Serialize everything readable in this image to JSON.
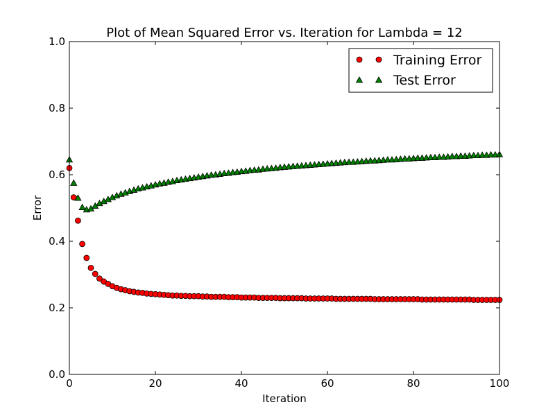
{
  "chart_data": {
    "type": "scatter",
    "title": "Plot of Mean Squared Error vs. Iteration for Lambda = 12",
    "xlabel": "Iteration",
    "ylabel": "Error",
    "xlim": [
      0,
      100
    ],
    "ylim": [
      0,
      1.0
    ],
    "xticks": [
      "0",
      "20",
      "40",
      "60",
      "80",
      "100"
    ],
    "yticks": [
      "0.0",
      "0.2",
      "0.4",
      "0.6",
      "0.8",
      "1.0"
    ],
    "grid": false,
    "legend_position": "top-right",
    "series": [
      {
        "name": "Training Error",
        "marker": "circle",
        "color": "#ff0000",
        "x": [
          0,
          1,
          2,
          3,
          4,
          5,
          6,
          7,
          8,
          9,
          10,
          11,
          12,
          13,
          14,
          15,
          16,
          17,
          18,
          19,
          20,
          21,
          22,
          23,
          24,
          25,
          26,
          27,
          28,
          29,
          30,
          31,
          32,
          33,
          34,
          35,
          36,
          37,
          38,
          39,
          40,
          41,
          42,
          43,
          44,
          45,
          46,
          47,
          48,
          49,
          50,
          51,
          52,
          53,
          54,
          55,
          56,
          57,
          58,
          59,
          60,
          61,
          62,
          63,
          64,
          65,
          66,
          67,
          68,
          69,
          70,
          71,
          72,
          73,
          74,
          75,
          76,
          77,
          78,
          79,
          80,
          81,
          82,
          83,
          84,
          85,
          86,
          87,
          88,
          89,
          90,
          91,
          92,
          93,
          94,
          95,
          96,
          97,
          98,
          99,
          100
        ],
        "values": [
          0.62,
          0.532,
          0.462,
          0.392,
          0.35,
          0.32,
          0.302,
          0.288,
          0.279,
          0.272,
          0.265,
          0.26,
          0.256,
          0.253,
          0.25,
          0.248,
          0.246,
          0.245,
          0.243,
          0.242,
          0.241,
          0.24,
          0.239,
          0.238,
          0.237,
          0.237,
          0.236,
          0.236,
          0.235,
          0.235,
          0.235,
          0.234,
          0.234,
          0.233,
          0.233,
          0.233,
          0.233,
          0.232,
          0.232,
          0.232,
          0.231,
          0.231,
          0.231,
          0.231,
          0.23,
          0.23,
          0.23,
          0.23,
          0.23,
          0.229,
          0.229,
          0.229,
          0.229,
          0.229,
          0.229,
          0.228,
          0.228,
          0.228,
          0.228,
          0.228,
          0.228,
          0.228,
          0.227,
          0.227,
          0.227,
          0.227,
          0.227,
          0.227,
          0.227,
          0.227,
          0.227,
          0.226,
          0.226,
          0.226,
          0.226,
          0.226,
          0.226,
          0.226,
          0.226,
          0.226,
          0.226,
          0.226,
          0.225,
          0.225,
          0.225,
          0.225,
          0.225,
          0.225,
          0.225,
          0.225,
          0.225,
          0.225,
          0.225,
          0.225,
          0.224,
          0.224,
          0.224,
          0.224,
          0.224,
          0.224,
          0.224
        ]
      },
      {
        "name": "Test Error",
        "marker": "triangle",
        "color": "#008000",
        "x": [
          0,
          1,
          2,
          3,
          4,
          5,
          6,
          7,
          8,
          9,
          10,
          11,
          12,
          13,
          14,
          15,
          16,
          17,
          18,
          19,
          20,
          21,
          22,
          23,
          24,
          25,
          26,
          27,
          28,
          29,
          30,
          31,
          32,
          33,
          34,
          35,
          36,
          37,
          38,
          39,
          40,
          41,
          42,
          43,
          44,
          45,
          46,
          47,
          48,
          49,
          50,
          51,
          52,
          53,
          54,
          55,
          56,
          57,
          58,
          59,
          60,
          61,
          62,
          63,
          64,
          65,
          66,
          67,
          68,
          69,
          70,
          71,
          72,
          73,
          74,
          75,
          76,
          77,
          78,
          79,
          80,
          81,
          82,
          83,
          84,
          85,
          86,
          87,
          88,
          89,
          90,
          91,
          92,
          93,
          94,
          95,
          96,
          97,
          98,
          99,
          100
        ],
        "values": [
          0.645,
          0.575,
          0.53,
          0.502,
          0.495,
          0.498,
          0.506,
          0.514,
          0.52,
          0.526,
          0.532,
          0.537,
          0.542,
          0.546,
          0.55,
          0.554,
          0.558,
          0.561,
          0.564,
          0.567,
          0.57,
          0.573,
          0.575,
          0.578,
          0.58,
          0.583,
          0.585,
          0.587,
          0.589,
          0.591,
          0.593,
          0.595,
          0.597,
          0.599,
          0.6,
          0.602,
          0.604,
          0.605,
          0.607,
          0.608,
          0.61,
          0.611,
          0.613,
          0.614,
          0.615,
          0.617,
          0.618,
          0.619,
          0.62,
          0.622,
          0.623,
          0.624,
          0.625,
          0.626,
          0.627,
          0.628,
          0.629,
          0.63,
          0.631,
          0.632,
          0.633,
          0.634,
          0.635,
          0.636,
          0.637,
          0.638,
          0.638,
          0.639,
          0.64,
          0.641,
          0.642,
          0.642,
          0.643,
          0.644,
          0.645,
          0.645,
          0.646,
          0.647,
          0.648,
          0.648,
          0.649,
          0.65,
          0.65,
          0.651,
          0.652,
          0.652,
          0.653,
          0.653,
          0.654,
          0.655,
          0.655,
          0.656,
          0.656,
          0.657,
          0.658,
          0.658,
          0.659,
          0.659,
          0.66,
          0.66,
          0.661
        ]
      }
    ]
  }
}
